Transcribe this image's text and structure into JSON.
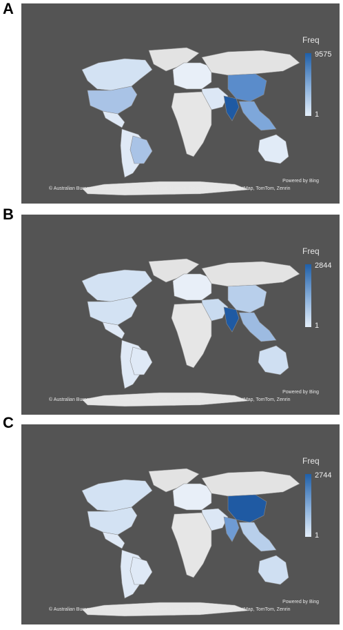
{
  "panels": [
    {
      "label": "A",
      "legend_title": "Freq",
      "legend_max": "9575",
      "legend_min": "1",
      "powered_by": "Powered by Bing",
      "copyright": "© Australian Bureau of Statistics, GeoNames, Microsoft, Navinfo, Open Places, OpenStreetMap, TomTom, Zenrin",
      "colors": {
        "north_america": "#d3e2f3",
        "usa": "#a9c3e6",
        "latin_america": "#dfe9f6",
        "brazil": "#a9c3e6",
        "europe": "#e8eff8",
        "africa": "#e6e6e6",
        "russia": "#e3e3e3",
        "middle_east": "#dce7f5",
        "china": "#5a8ccb",
        "india": "#1f5aa3",
        "se_asia": "#7ea7da",
        "australia": "#e1ebf7",
        "greenland": "#e3e3e3",
        "antarctica": "#e6e6e6"
      }
    },
    {
      "label": "B",
      "legend_title": "Freq",
      "legend_max": "2844",
      "legend_min": "1",
      "powered_by": "Powered by Bing",
      "copyright": "© Australian Bureau of Statistics, GeoNames, Microsoft, Navinfo, Open Places, OpenStreetMap, TomTom, Zenrin",
      "colors": {
        "north_america": "#d3e2f3",
        "usa": "#d3e2f3",
        "latin_america": "#dfe9f6",
        "brazil": "#dfe9f6",
        "europe": "#e8eff8",
        "africa": "#e6e6e6",
        "russia": "#e3e3e3",
        "middle_east": "#c9dbf0",
        "china": "#b8cfeb",
        "india": "#1f5aa3",
        "se_asia": "#9dbbe1",
        "australia": "#cfdff2",
        "greenland": "#e3e3e3",
        "antarctica": "#e6e6e6"
      }
    },
    {
      "label": "C",
      "legend_title": "Freq",
      "legend_max": "2744",
      "legend_min": "1",
      "powered_by": "Powered by Bing",
      "copyright": "© Australian Bureau of Statistics, GeoNames, Microsoft, Navinfo, Open Places, OpenStreetMap, TomTom, Zenrin",
      "colors": {
        "north_america": "#d3e2f3",
        "usa": "#d3e2f3",
        "latin_america": "#dfe9f6",
        "brazil": "#dfe9f6",
        "europe": "#e8eff8",
        "africa": "#e6e6e6",
        "russia": "#e3e3e3",
        "middle_east": "#dce7f5",
        "china": "#1f5aa3",
        "india": "#6f9bd3",
        "se_asia": "#b8cfeb",
        "australia": "#cfdff2",
        "greenland": "#e3e3e3",
        "antarctica": "#e6e6e6"
      }
    }
  ]
}
